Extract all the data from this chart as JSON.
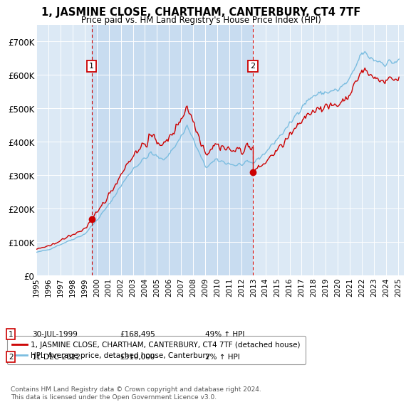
{
  "title": "1, JASMINE CLOSE, CHARTHAM, CANTERBURY, CT4 7TF",
  "subtitle": "Price paid vs. HM Land Registry's House Price Index (HPI)",
  "background_color": "#dce9f5",
  "fig_bg_color": "#ffffff",
  "sale1_date": "30-JUL-1999",
  "sale1_price": 168495,
  "sale1_label": "49% ↑ HPI",
  "sale2_date": "11-DEC-2012",
  "sale2_price": 310000,
  "sale2_label": "2% ↑ HPI",
  "legend_line1": "1, JASMINE CLOSE, CHARTHAM, CANTERBURY, CT4 7TF (detached house)",
  "legend_line2": "HPI: Average price, detached house, Canterbury",
  "footer": "Contains HM Land Registry data © Crown copyright and database right 2024.\nThis data is licensed under the Open Government Licence v3.0.",
  "hpi_color": "#7bbde0",
  "price_color": "#cc0000",
  "shade_color": "#c8dcf0",
  "xmin": 1995.0,
  "xmax": 2025.5,
  "ymin": 0,
  "ymax": 750000,
  "yticks": [
    0,
    100000,
    200000,
    300000,
    400000,
    500000,
    600000,
    700000
  ],
  "ytick_labels": [
    "£0",
    "£100K",
    "£200K",
    "£300K",
    "£400K",
    "£500K",
    "£600K",
    "£700K"
  ],
  "sale1_year": 1999.583,
  "sale2_year": 2012.958
}
